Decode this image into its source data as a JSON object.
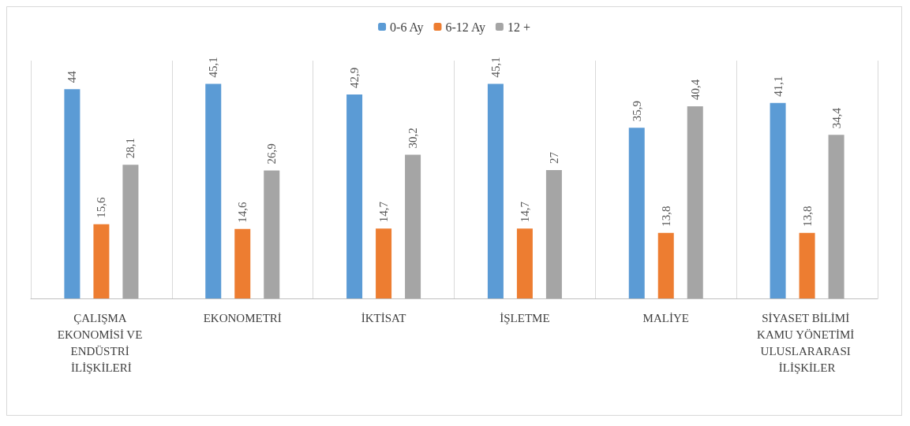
{
  "chart_data": {
    "type": "bar",
    "categories": [
      "ÇALIŞMA EKONOMİSİ VE ENDÜSTRİ İLİŞKİLERİ",
      "EKONOMETRİ",
      "İKTİSAT",
      "İŞLETME",
      "MALİYE",
      "SİYASET BİLİMİ KAMU YÖNETİMİ ULUSLARARASI İLİŞKİLER"
    ],
    "series": [
      {
        "name": "0-6 Ay",
        "color": "#5b9bd5",
        "values": [
          44,
          45.1,
          42.9,
          45.1,
          35.9,
          41.1
        ],
        "value_labels": [
          "44",
          "45,1",
          "42,9",
          "45,1",
          "35,9",
          "41,1"
        ]
      },
      {
        "name": "6-12 Ay",
        "color": "#ed7d31",
        "values": [
          15.6,
          14.6,
          14.7,
          14.7,
          13.8,
          13.8
        ],
        "value_labels": [
          "15,6",
          "14,6",
          "14,7",
          "14,7",
          "13,8",
          "13,8"
        ]
      },
      {
        "name": "12 +",
        "color": "#a5a5a5",
        "values": [
          28.1,
          26.9,
          30.2,
          27,
          40.4,
          34.4
        ],
        "value_labels": [
          "28,1",
          "26,9",
          "30,2",
          "27",
          "40,4",
          "34,4"
        ]
      }
    ],
    "grid": "x",
    "legend": "top"
  }
}
